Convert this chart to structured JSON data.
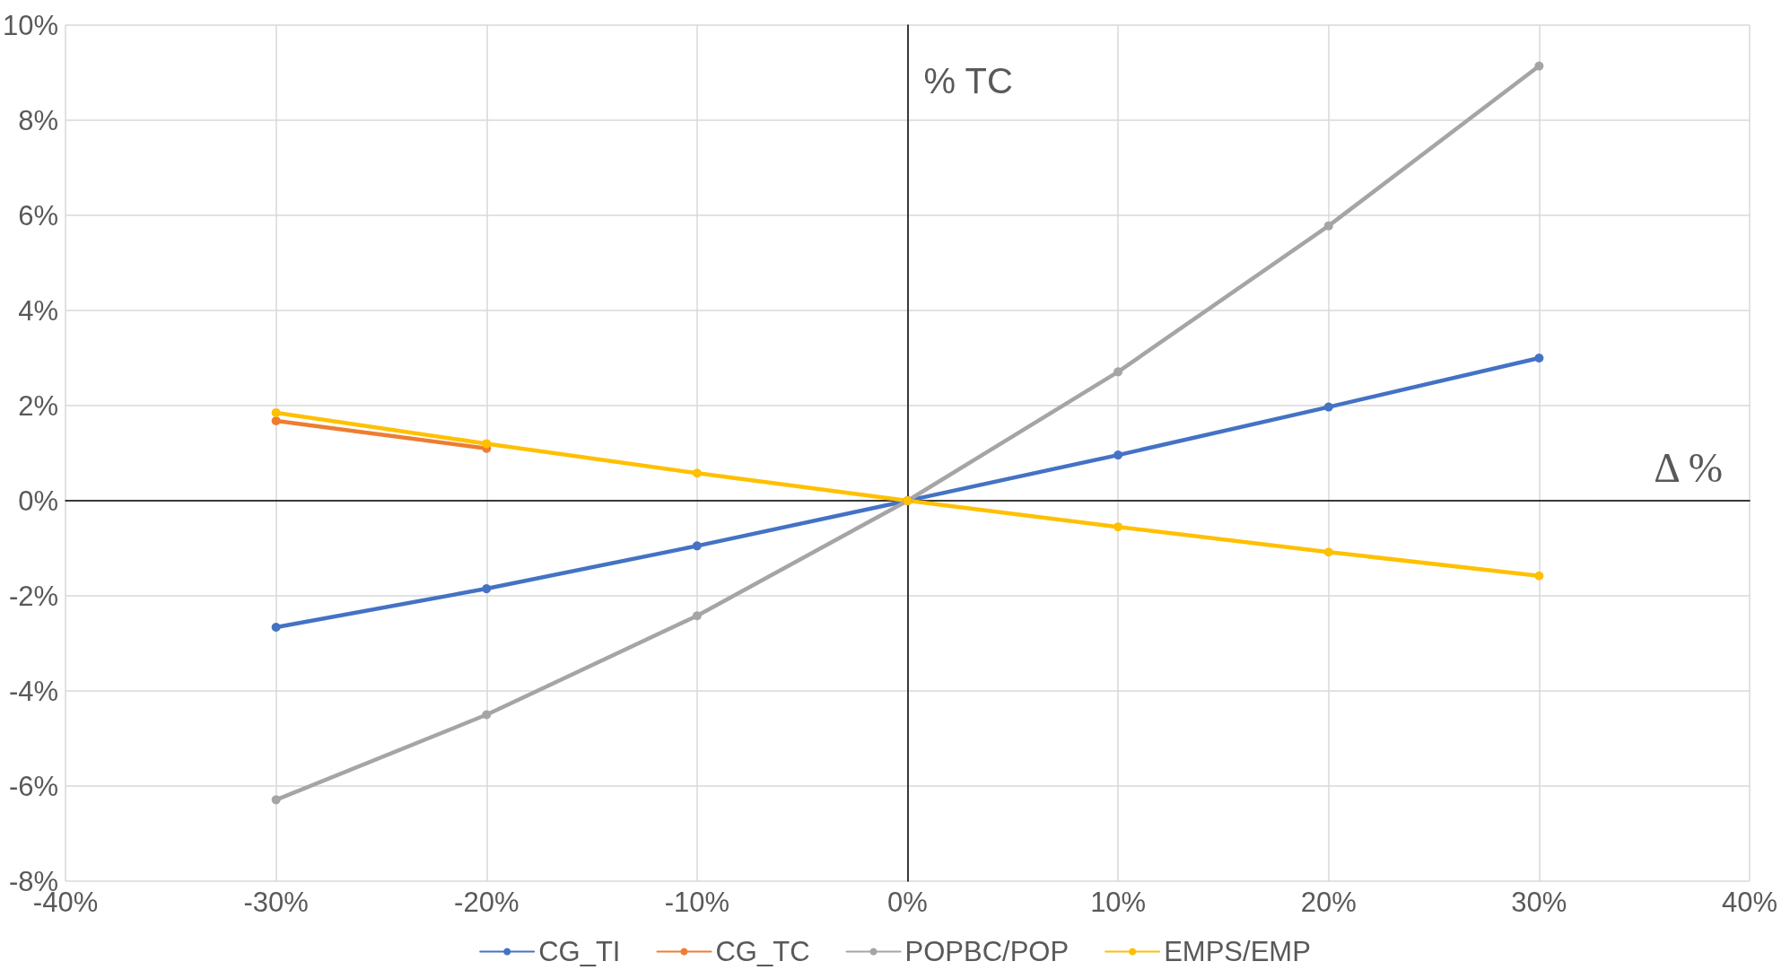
{
  "chart_data": {
    "type": "line",
    "xlabel": "Δ %",
    "ylabel": "% TC",
    "x": [
      -30,
      -20,
      -10,
      0,
      10,
      20,
      30
    ],
    "series": [
      {
        "name": "CG_TI",
        "color": "#4472c4",
        "values": [
          -2.66,
          -1.85,
          -0.95,
          0,
          0.96,
          1.97,
          3.0
        ]
      },
      {
        "name": "CG_TC",
        "color": "#ed7d31",
        "values": [
          1.68,
          1.1,
          null,
          0,
          null,
          null,
          null
        ]
      },
      {
        "name": "POPBC/POP",
        "color": "#a5a5a5",
        "values": [
          -6.29,
          -4.5,
          -2.42,
          0,
          2.71,
          5.78,
          9.14
        ]
      },
      {
        "name": "EMPS/EMP",
        "color": "#ffc000",
        "values": [
          1.85,
          1.2,
          0.58,
          0,
          -0.55,
          -1.08,
          -1.58
        ]
      }
    ],
    "xlim": [
      -40,
      40
    ],
    "xticks": [
      {
        "value": -40,
        "label": "-40%"
      },
      {
        "value": -30,
        "label": "-30%"
      },
      {
        "value": -20,
        "label": "-20%"
      },
      {
        "value": -10,
        "label": "-10%"
      },
      {
        "value": 0,
        "label": "0%"
      },
      {
        "value": 10,
        "label": "10%"
      },
      {
        "value": 20,
        "label": "20%"
      },
      {
        "value": 30,
        "label": "30%"
      },
      {
        "value": 40,
        "label": "40%"
      }
    ],
    "ylim": [
      -8,
      10
    ],
    "yticks": [
      {
        "value": -8,
        "label": "-8%"
      },
      {
        "value": -6,
        "label": "-6%"
      },
      {
        "value": -4,
        "label": "-4%"
      },
      {
        "value": -2,
        "label": "-2%"
      },
      {
        "value": 0,
        "label": "0%"
      },
      {
        "value": 2,
        "label": "2%"
      },
      {
        "value": 4,
        "label": "4%"
      },
      {
        "value": 6,
        "label": "6%"
      },
      {
        "value": 8,
        "label": "8%"
      },
      {
        "value": 10,
        "label": "10%"
      }
    ],
    "grid": true,
    "legend": "bottom",
    "marker": "circle",
    "line_style": "solid"
  }
}
